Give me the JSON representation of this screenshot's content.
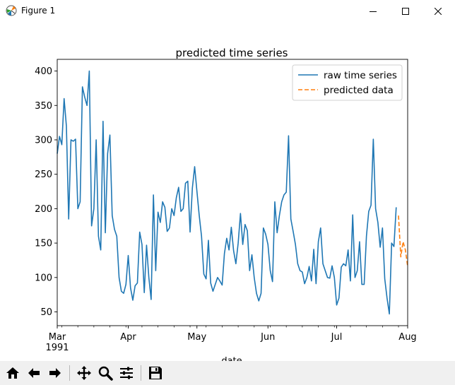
{
  "window": {
    "title": "Figure 1",
    "icon": "matplotlib-logo-icon"
  },
  "toolbar": {
    "buttons": [
      {
        "name": "home-icon"
      },
      {
        "name": "back-arrow-icon"
      },
      {
        "name": "forward-arrow-icon"
      },
      {
        "name": "pan-icon"
      },
      {
        "name": "zoom-icon"
      },
      {
        "name": "configure-subplots-icon"
      },
      {
        "name": "save-icon"
      }
    ]
  },
  "chart_data": {
    "type": "line",
    "title": "predicted time series",
    "xlabel": "date",
    "ylabel": "",
    "xlim": [
      "1991-03-01",
      "1991-08-01"
    ],
    "ylim": [
      30,
      417
    ],
    "x_ticks": [
      {
        "date": "1991-03-01",
        "label": "Mar",
        "sublabel": "1991"
      },
      {
        "date": "1991-04-01",
        "label": "Apr",
        "sublabel": ""
      },
      {
        "date": "1991-05-01",
        "label": "May",
        "sublabel": ""
      },
      {
        "date": "1991-06-01",
        "label": "Jun",
        "sublabel": ""
      },
      {
        "date": "1991-07-01",
        "label": "Jul",
        "sublabel": ""
      },
      {
        "date": "1991-08-01",
        "label": "Aug",
        "sublabel": ""
      }
    ],
    "y_ticks": [
      50,
      100,
      150,
      200,
      250,
      300,
      350,
      400
    ],
    "legend": {
      "position": "top-right"
    },
    "colors": {
      "raw": "#1f77b4",
      "predicted": "#ff7f0e"
    },
    "series": [
      {
        "name": "raw time series",
        "style": "solid",
        "start_date": "1991-03-01",
        "values": [
          280,
          305,
          293,
          360,
          320,
          185,
          300,
          298,
          301,
          200,
          210,
          377,
          362,
          350,
          400,
          175,
          200,
          300,
          160,
          140,
          327,
          165,
          280,
          307,
          190,
          170,
          160,
          100,
          80,
          77,
          90,
          132,
          85,
          67,
          88,
          92,
          166,
          148,
          78,
          147,
          100,
          68,
          220,
          110,
          195,
          180,
          210,
          202,
          167,
          172,
          200,
          190,
          216,
          231,
          196,
          200,
          237,
          240,
          166,
          230,
          261,
          225,
          190,
          160,
          105,
          98,
          154,
          92,
          80,
          90,
          100,
          95,
          89,
          135,
          157,
          140,
          173,
          139,
          120,
          150,
          193,
          148,
          177,
          168,
          110,
          133,
          100,
          77,
          66,
          77,
          172,
          163,
          148,
          110,
          94,
          210,
          165,
          190,
          210,
          220,
          224,
          306,
          185,
          167,
          148,
          120,
          110,
          108,
          91,
          100,
          116,
          95,
          141,
          91,
          152,
          172,
          120,
          110,
          100,
          99,
          117,
          100,
          60,
          70,
          115,
          120,
          117,
          140,
          95,
          191,
          100,
          110,
          152,
          90,
          90,
          160,
          196,
          205,
          301,
          200,
          180,
          144,
          172,
          98,
          70,
          47,
          150,
          145,
          202
        ],
        "values_note": ""
      },
      {
        "name": "predicted data",
        "style": "dashed",
        "start_date": "1991-07-28",
        "values": [
          190,
          130,
          152,
          140,
          116
        ]
      }
    ]
  }
}
